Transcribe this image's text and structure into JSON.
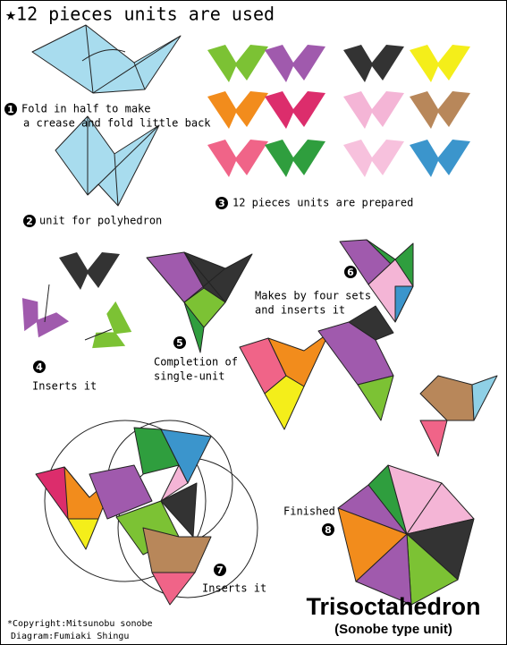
{
  "header": {
    "title": "★12 pieces units are used"
  },
  "steps": [
    {
      "number": "1",
      "lines": [
        "Fold in half to make",
        "a crease and fold little back"
      ]
    },
    {
      "number": "2",
      "lines": [
        "unit for polyhedron"
      ]
    },
    {
      "number": "3",
      "lines": [
        "12 pieces units are prepared"
      ]
    },
    {
      "number": "4",
      "lines": [
        "Inserts it"
      ]
    },
    {
      "number": "5",
      "lines": [
        "Completion of",
        "single-unit"
      ]
    },
    {
      "number": "6",
      "lines": [
        "Makes by four sets",
        "and inserts it"
      ]
    },
    {
      "number": "7",
      "lines": [
        "Inserts it"
      ]
    },
    {
      "number": "8",
      "lines": [
        "Finished"
      ]
    }
  ],
  "footer": {
    "title": "Trisoctahedron",
    "subtitle": "(Sonobe type unit)",
    "credits": [
      "*Copyright:Mitsunobu sonobe",
      "Diagram:Fumiaki Shingu"
    ]
  }
}
